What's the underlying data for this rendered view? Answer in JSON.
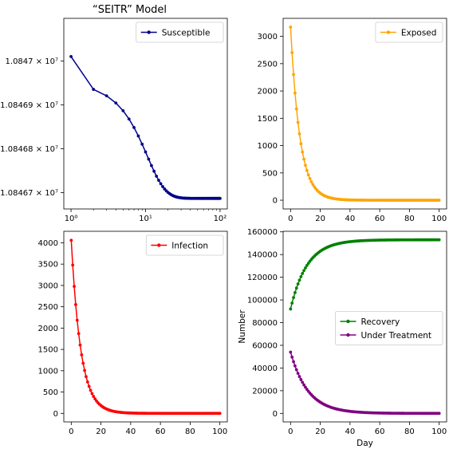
{
  "chart_data": [
    {
      "type": "line",
      "title": "“SEITR”   Model",
      "xlabel": "",
      "ylabel": "",
      "xscale": "log",
      "xlim": [
        0.8,
        125
      ],
      "ylim": [
        10846663,
        10847097
      ],
      "xticks": [
        1,
        10,
        100
      ],
      "xtick_labels": [
        "10⁰",
        "10¹",
        "10²"
      ],
      "yticks": [
        10846700,
        10846800,
        10846900,
        10847000
      ],
      "ytick_labels": [
        "1.08467 × 10⁷",
        "1.08468 × 10⁷",
        "1.08469 × 10⁷",
        "1.0847 × 10⁷"
      ],
      "legend": "top-right",
      "grid": false,
      "series": [
        {
          "name": "Susceptible",
          "color": "#00008b",
          "decay": "logistic",
          "x": [
            1,
            100
          ],
          "y_start": 10847010,
          "y_end": 10846687,
          "midpoint_day": 7,
          "steepness": 0.24,
          "flat_start": 10847010
        }
      ]
    },
    {
      "type": "line",
      "title": "",
      "xlabel": "",
      "ylabel": "",
      "xlim": [
        -5,
        105
      ],
      "ylim": [
        -160,
        3330
      ],
      "xticks": [
        0,
        20,
        40,
        60,
        80,
        100
      ],
      "yticks": [
        0,
        500,
        1000,
        1500,
        2000,
        2500,
        3000
      ],
      "legend": "top-right",
      "grid": false,
      "series": [
        {
          "name": "Exposed",
          "color": "#ffa500",
          "decay": "exponential",
          "x": [
            0,
            100
          ],
          "y_start": 3170,
          "y_end": 0,
          "rate": 0.16
        }
      ]
    },
    {
      "type": "line",
      "title": "",
      "xlabel": "",
      "ylabel": "",
      "xlim": [
        -5,
        105
      ],
      "ylim": [
        -200,
        4270
      ],
      "xticks": [
        0,
        20,
        40,
        60,
        80,
        100
      ],
      "yticks": [
        0,
        500,
        1000,
        1500,
        2000,
        2500,
        3000,
        3500,
        4000
      ],
      "legend": "top-right",
      "grid": false,
      "series": [
        {
          "name": "Infection",
          "color": "#ff0000",
          "decay": "exponential",
          "x": [
            0,
            100
          ],
          "y_start": 4060,
          "y_end": 0,
          "rate": 0.155
        }
      ]
    },
    {
      "type": "line",
      "title": "",
      "xlabel": "Day",
      "ylabel": "Number",
      "xlim": [
        -5,
        105
      ],
      "ylim": [
        -7500,
        160500
      ],
      "xticks": [
        0,
        20,
        40,
        60,
        80,
        100
      ],
      "yticks": [
        0,
        20000,
        40000,
        60000,
        80000,
        100000,
        120000,
        140000,
        160000
      ],
      "legend": "center-right",
      "grid": false,
      "series": [
        {
          "name": "Recovery",
          "color": "#008000",
          "decay": "exponential",
          "x": [
            0,
            100
          ],
          "y_start": 92000,
          "y_end": 153000,
          "rate": 0.09
        },
        {
          "name": "Under Treatment",
          "color": "#800080",
          "decay": "exponential",
          "x": [
            0,
            100
          ],
          "y_start": 54000,
          "y_end": 0,
          "rate": 0.085
        }
      ]
    }
  ]
}
